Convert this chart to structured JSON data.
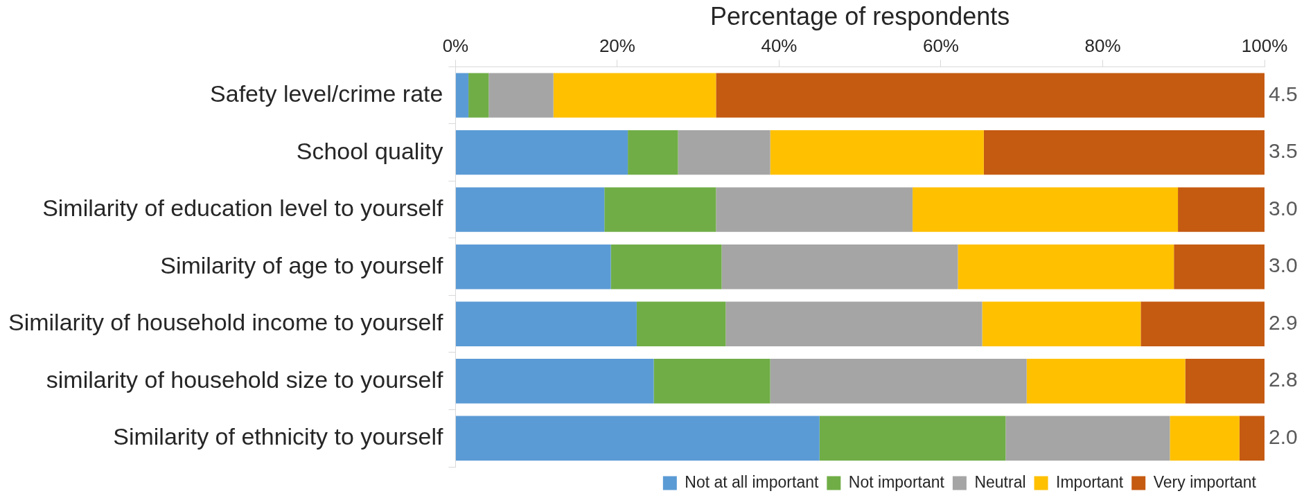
{
  "chart_data": {
    "type": "bar",
    "orientation": "horizontal",
    "stacked": true,
    "xlabel": "Percentage of respondents",
    "categories": [
      "Safety level/crime rate",
      "School quality",
      "Similarity of education level to yourself",
      "Similarity of age to yourself",
      "Similarity of household income to yourself",
      "similarity of household size to yourself",
      "Similarity of ethnicity to yourself"
    ],
    "series": [
      {
        "name": "Not at all important",
        "color": "#5b9bd5",
        "values": [
          1.6,
          21.3,
          18.4,
          19.2,
          22.4,
          24.5,
          45.0
        ]
      },
      {
        "name": "Not important",
        "color": "#70ad47",
        "values": [
          2.5,
          6.2,
          13.8,
          13.7,
          11.0,
          14.4,
          23.0
        ]
      },
      {
        "name": "Neutral",
        "color": "#a5a5a5",
        "values": [
          8.0,
          11.4,
          24.3,
          29.2,
          31.7,
          31.7,
          20.3
        ]
      },
      {
        "name": "Important",
        "color": "#ffc000",
        "values": [
          20.1,
          26.4,
          32.8,
          26.7,
          19.6,
          19.6,
          8.6
        ]
      },
      {
        "name": "Very important",
        "color": "#c55a11",
        "values": [
          67.8,
          34.7,
          10.7,
          11.2,
          15.3,
          9.8,
          3.1
        ]
      }
    ],
    "xlim": [
      0,
      100
    ],
    "xticks": [
      {
        "value": 0,
        "label": "0%"
      },
      {
        "value": 20,
        "label": "20%"
      },
      {
        "value": 40,
        "label": "40%"
      },
      {
        "value": 60,
        "label": "60%"
      },
      {
        "value": 80,
        "label": "80%"
      },
      {
        "value": 100,
        "label": "100%"
      }
    ],
    "annotations": [
      "4.5",
      "3.5",
      "3.0",
      "3.0",
      "2.9",
      "2.8",
      "2.0"
    ],
    "grid": false,
    "legend": "bottom"
  }
}
